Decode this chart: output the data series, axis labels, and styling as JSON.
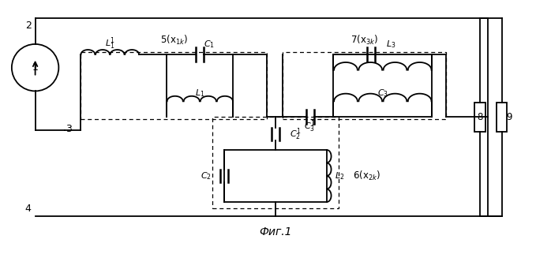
{
  "title": "Фиг.1",
  "background_color": "#ffffff",
  "line_color": "#000000",
  "fig_width": 6.98,
  "fig_height": 3.27,
  "dpi": 100
}
